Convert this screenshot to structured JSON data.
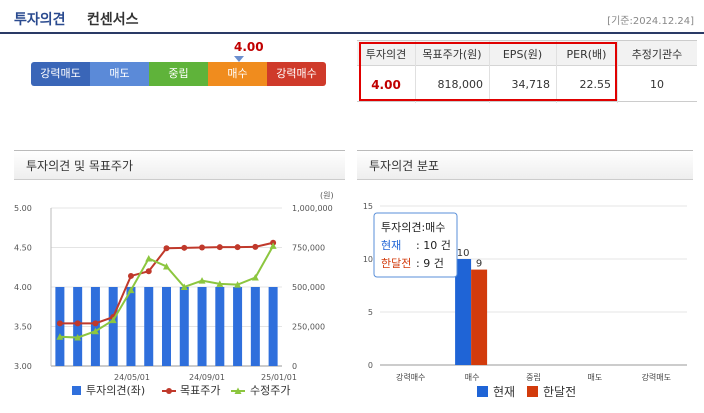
{
  "header": {
    "title_main": "투자의견",
    "title_sub": "컨센서스",
    "date": "[기준:2024.12.24]"
  },
  "opinion_scale": {
    "current_value": "4.00",
    "labels": [
      "강력매도",
      "매도",
      "중립",
      "매수",
      "강력매수"
    ],
    "colors": [
      "#3a66b8",
      "#5b8ad8",
      "#5fb33a",
      "#f08c1e",
      "#cf3a2a"
    ]
  },
  "consensus_table": {
    "headers": [
      "투자의견",
      "목표주가(원)",
      "EPS(원)",
      "PER(배)",
      "추정기관수"
    ],
    "values": [
      "4.00",
      "818,000",
      "34,718",
      "22.55",
      "10"
    ]
  },
  "panels": {
    "left_title": "투자의견 및 목표주가",
    "right_title": "투자의견 분포"
  },
  "chart_data": [
    {
      "type": "bar",
      "title": "투자의견 및 목표주가",
      "y_left_ticks": [
        "5.00",
        "4.50",
        "4.00",
        "3.50",
        "3.00"
      ],
      "y_left_range": [
        3.0,
        5.0
      ],
      "y_right_unit": "(원)",
      "y_right_ticks": [
        "1,000,000",
        "750,000",
        "500,000",
        "250,000",
        "0"
      ],
      "y_right_range": [
        0,
        1000000
      ],
      "x_ticks": [
        "24/05/01",
        "24/09/01",
        "25/01/01"
      ],
      "series": [
        {
          "name": "투자의견(좌)",
          "kind": "bar",
          "color": "#2f6fdc",
          "values": [
            4,
            4,
            4,
            4,
            4,
            4,
            4,
            4,
            4,
            4,
            4,
            4,
            4
          ]
        },
        {
          "name": "목표주가",
          "kind": "line",
          "color": "#c0392b",
          "values": [
            270000,
            270000,
            270000,
            310000,
            570000,
            600000,
            745000,
            748000,
            750000,
            752000,
            752000,
            754000,
            780000
          ]
        },
        {
          "name": "수정주가",
          "kind": "line",
          "color": "#8cc63f",
          "values": [
            185000,
            180000,
            220000,
            290000,
            480000,
            680000,
            630000,
            500000,
            540000,
            520000,
            515000,
            560000,
            760000
          ]
        }
      ]
    },
    {
      "type": "bar",
      "title": "투자의견 분포",
      "y_ticks": [
        "15",
        "10",
        "5",
        "0"
      ],
      "ylim": [
        0,
        15
      ],
      "categories": [
        "강력매수",
        "매수",
        "중립",
        "매도",
        "강력매도"
      ],
      "series": [
        {
          "name": "현재",
          "color": "#1f64d6",
          "values": [
            0,
            10,
            0,
            0,
            0
          ]
        },
        {
          "name": "한달전",
          "color": "#d23b0c",
          "values": [
            0,
            9,
            0,
            0,
            0
          ]
        }
      ],
      "tooltip": {
        "title": "투자의견:매수",
        "rows": [
          {
            "label": "현재",
            "value": ": 10 건"
          },
          {
            "label": "한달전",
            "value": ":  9 건"
          }
        ]
      }
    }
  ]
}
